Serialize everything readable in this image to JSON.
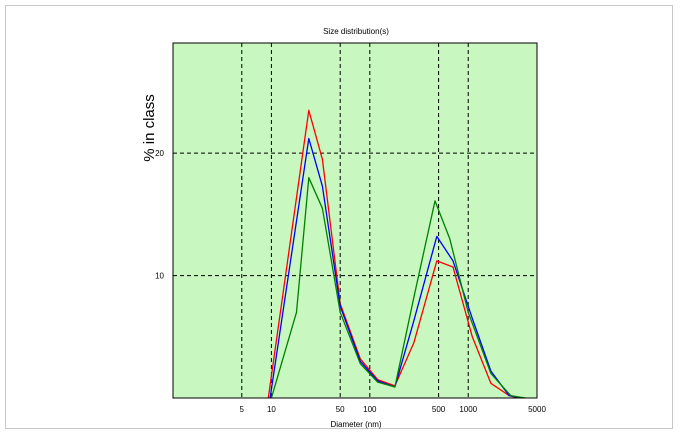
{
  "chart_data": {
    "type": "line",
    "title": "Size distribution(s)",
    "xlabel": "Diameter (nm)",
    "ylabel": "% in class",
    "x_scale": "log",
    "xlim": [
      1,
      5000
    ],
    "ylim": [
      0,
      29
    ],
    "x_ticks": [
      5,
      10,
      50,
      100,
      500,
      1000,
      5000
    ],
    "x_tick_labels": [
      "5",
      "10",
      "50",
      "100",
      "500",
      "1000",
      "5000"
    ],
    "y_ticks": [
      10,
      20
    ],
    "y_tick_labels": [
      "10",
      "20"
    ],
    "grid": true,
    "background_color": "#c8f7c0",
    "series": [
      {
        "color": "#ff0000",
        "x": [
          9.3,
          24,
          33,
          50,
          80,
          120,
          180,
          280,
          480,
          700,
          1100,
          1700,
          2600,
          3200
        ],
        "y": [
          0,
          23.5,
          19.5,
          7.7,
          3.2,
          1.5,
          1,
          4.5,
          11.2,
          10.7,
          5,
          1.2,
          0.2,
          0
        ]
      },
      {
        "color": "#0000ff",
        "x": [
          9.7,
          24,
          33,
          50,
          80,
          120,
          180,
          280,
          480,
          700,
          1100,
          1700,
          2600,
          3500
        ],
        "y": [
          0,
          21.2,
          17.3,
          7.5,
          3,
          1.4,
          0.9,
          6.3,
          13.2,
          11.2,
          6.5,
          2.2,
          0.2,
          0
        ]
      },
      {
        "color": "#008000",
        "x": [
          10,
          18,
          24,
          33,
          50,
          80,
          120,
          180,
          280,
          460,
          650,
          1000,
          1700,
          2700,
          3800
        ],
        "y": [
          0,
          7,
          18,
          15.5,
          7,
          2.8,
          1.3,
          0.9,
          8.2,
          16.1,
          13,
          7,
          2,
          0.2,
          0
        ]
      }
    ]
  }
}
